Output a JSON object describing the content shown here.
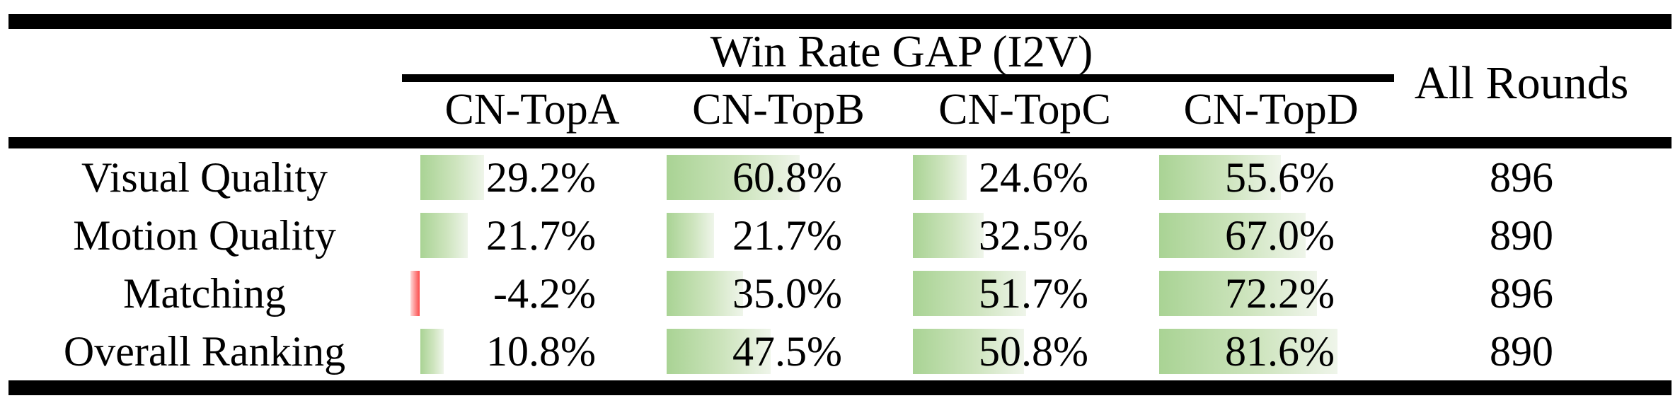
{
  "table": {
    "group_header": "Win Rate GAP (I2V)",
    "all_rounds_header": "All Rounds",
    "columns": [
      "CN-TopA",
      "CN-TopB",
      "CN-TopC",
      "CN-TopD"
    ],
    "rows": [
      {
        "label": "Visual Quality",
        "values": [
          29.2,
          60.8,
          24.6,
          55.6
        ],
        "display": [
          "29.2%",
          "60.8%",
          "24.6%",
          "55.6%"
        ],
        "all_rounds": "896"
      },
      {
        "label": "Motion Quality",
        "values": [
          21.7,
          21.7,
          32.5,
          67.0
        ],
        "display": [
          "21.7%",
          "21.7%",
          "32.5%",
          "67.0%"
        ],
        "all_rounds": "890"
      },
      {
        "label": "Matching",
        "values": [
          -4.2,
          35.0,
          51.7,
          72.2
        ],
        "display": [
          "-4.2%",
          "35.0%",
          "51.7%",
          "72.2%"
        ],
        "all_rounds": "896"
      },
      {
        "label": "Overall Ranking",
        "values": [
          10.8,
          47.5,
          50.8,
          81.6
        ],
        "display": [
          "10.8%",
          "47.5%",
          "50.8%",
          "81.6%"
        ],
        "all_rounds": "890"
      }
    ]
  },
  "colors": {
    "bar_positive_start": "#a9d394",
    "bar_positive_end": "#eff5ea",
    "bar_negative": "#fb4b4b",
    "rule": "#000000",
    "text": "#000000",
    "background": "#ffffff"
  },
  "chart_data": {
    "type": "table",
    "title": "Win Rate GAP (I2V)",
    "columns": [
      "CN-TopA",
      "CN-TopB",
      "CN-TopC",
      "CN-TopD",
      "All Rounds"
    ],
    "row_labels": [
      "Visual Quality",
      "Motion Quality",
      "Matching",
      "Overall Ranking"
    ],
    "series": [
      {
        "name": "Visual Quality",
        "win_rate_gap_percent": [
          29.2,
          60.8,
          24.6,
          55.6
        ],
        "all_rounds": 896
      },
      {
        "name": "Motion Quality",
        "win_rate_gap_percent": [
          21.7,
          21.7,
          32.5,
          67.0
        ],
        "all_rounds": 890
      },
      {
        "name": "Matching",
        "win_rate_gap_percent": [
          -4.2,
          35.0,
          51.7,
          72.2
        ],
        "all_rounds": 896
      },
      {
        "name": "Overall Ranking",
        "win_rate_gap_percent": [
          10.8,
          47.5,
          50.8,
          81.6
        ],
        "all_rounds": 890
      }
    ],
    "layout_hints": {
      "in_cell_data_bars": true,
      "bar_anchor": "left",
      "positive_bar_fill": "green gradient fading right",
      "negative_bar_fill": "thin red bar at axis"
    }
  }
}
